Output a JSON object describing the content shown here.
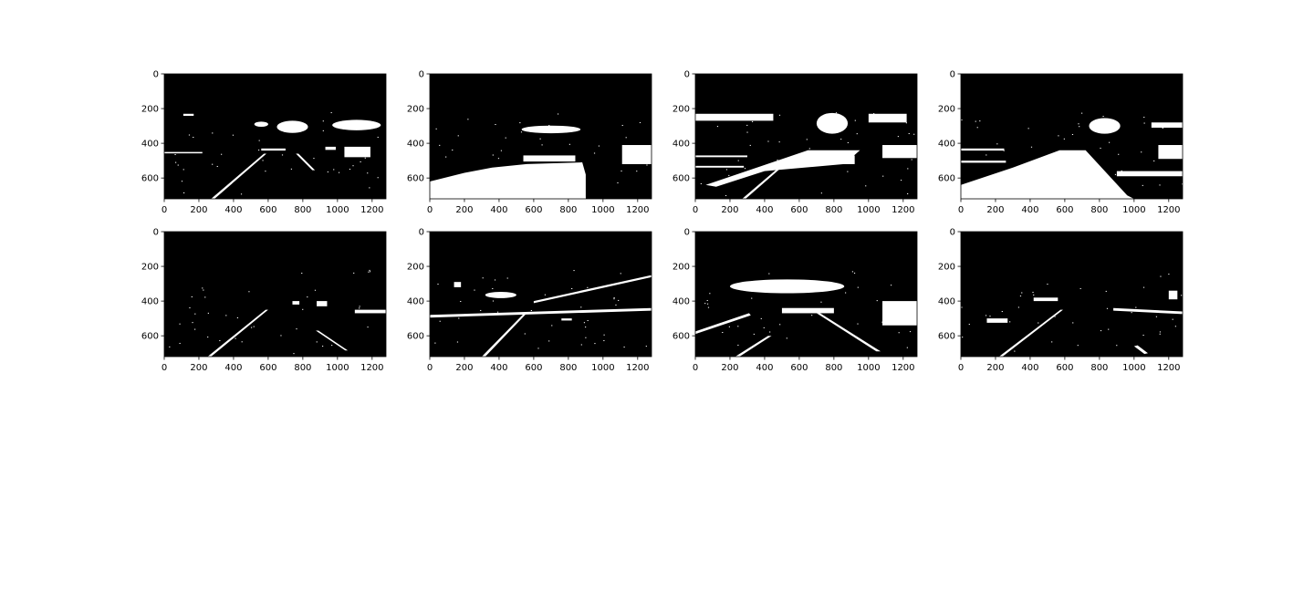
{
  "figure": {
    "background": "#ffffff",
    "image_colors": {
      "background": "#000000",
      "foreground": "#ffffff"
    },
    "axes": {
      "x_ticks": [
        0,
        200,
        400,
        600,
        800,
        1000,
        1200
      ],
      "y_ticks": [
        0,
        200,
        400,
        600
      ],
      "x_range": [
        0,
        1280
      ],
      "y_range": [
        720,
        0
      ]
    },
    "panels": [
      {
        "row": 1,
        "col": 1,
        "content": "binary thresholded road image: lane lines, car at right, bright blobs on horizon"
      },
      {
        "row": 1,
        "col": 2,
        "content": "binary thresholded road image: large white patches on road surface"
      },
      {
        "row": 1,
        "col": 3,
        "content": "binary thresholded road image: wide white bands at horizon and road"
      },
      {
        "row": 1,
        "col": 4,
        "content": "binary thresholded road image: dense white road texture"
      },
      {
        "row": 2,
        "col": 1,
        "content": "binary thresholded road image: clean lane lines"
      },
      {
        "row": 2,
        "col": 2,
        "content": "binary thresholded road image: lane lines and horizon streaks"
      },
      {
        "row": 2,
        "col": 3,
        "content": "binary thresholded road image: lane lines and bright horizon band"
      },
      {
        "row": 2,
        "col": 4,
        "content": "binary thresholded road image: sparse lane lines"
      }
    ]
  }
}
